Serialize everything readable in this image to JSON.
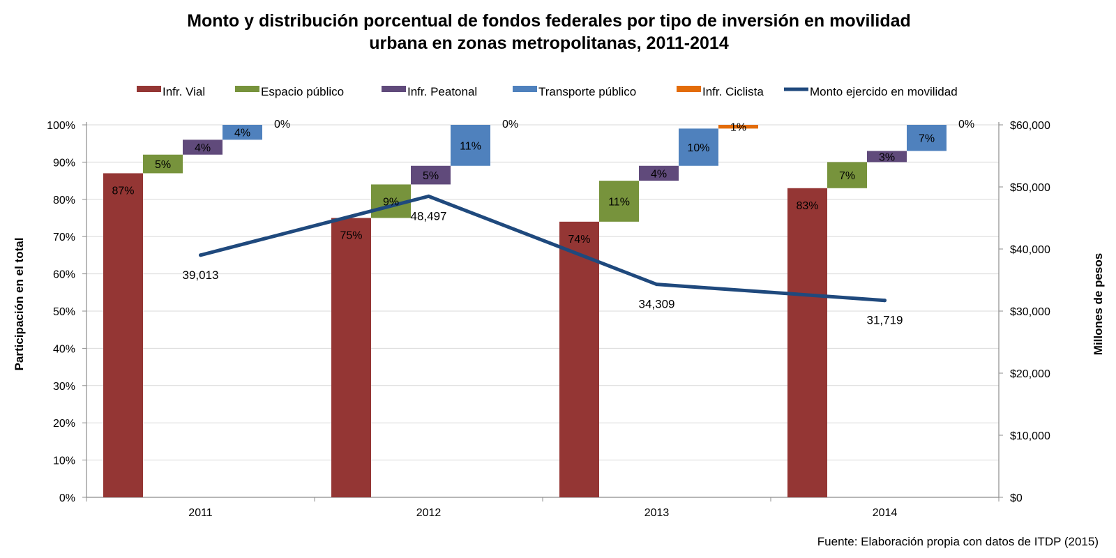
{
  "chart_data": {
    "type": "bar",
    "title_lines": [
      "Monto y distribución porcentual de fondos federales por tipo de inversión en movilidad",
      "urbana en zonas metropolitanas, 2011-2014"
    ],
    "categories": [
      "2011",
      "2012",
      "2013",
      "2014"
    ],
    "ylabel_left": "Participación en el total",
    "ylabel_right": "Millones de pesos",
    "y_left_ticks": [
      "0%",
      "10%",
      "20%",
      "30%",
      "40%",
      "50%",
      "60%",
      "70%",
      "80%",
      "90%",
      "100%"
    ],
    "y_right_ticks": [
      "$0",
      "$10,000",
      "$20,000",
      "$30,000",
      "$40,000",
      "$50,000",
      "$60,000"
    ],
    "y_left_range": [
      0,
      100
    ],
    "y_right_range": [
      0,
      60000
    ],
    "series": [
      {
        "name": "Infr. Vial",
        "color": "#943634",
        "values": [
          87,
          75,
          74,
          83
        ],
        "labels": [
          "87%",
          "75%",
          "74%",
          "83%"
        ]
      },
      {
        "name": "Espacio público",
        "color": "#77933c",
        "values": [
          5,
          9,
          11,
          7
        ],
        "labels": [
          "5%",
          "9%",
          "11%",
          "7%"
        ]
      },
      {
        "name": "Infr. Peatonal",
        "color": "#604a7b",
        "values": [
          4,
          5,
          4,
          3
        ],
        "labels": [
          "4%",
          "5%",
          "4%",
          "3%"
        ]
      },
      {
        "name": "Transporte público",
        "color": "#4f81bd",
        "values": [
          4,
          11,
          10,
          7
        ],
        "labels": [
          "4%",
          "11%",
          "10%",
          "7%"
        ]
      },
      {
        "name": "Infr. Ciclista",
        "color": "#e36c09",
        "values": [
          0,
          0,
          1,
          0
        ],
        "labels": [
          "0%",
          "0%",
          "1%",
          "0%"
        ]
      }
    ],
    "line_series": {
      "name": "Monto ejercido en movilidad",
      "color": "#1f497d",
      "values": [
        39013,
        48497,
        34309,
        31719
      ],
      "labels": [
        "39,013",
        "48,497",
        "34,309",
        "31,719"
      ]
    },
    "legend_position": "top",
    "grid": true
  },
  "source_note": "Fuente: Elaboración propia con datos de ITDP (2015)"
}
